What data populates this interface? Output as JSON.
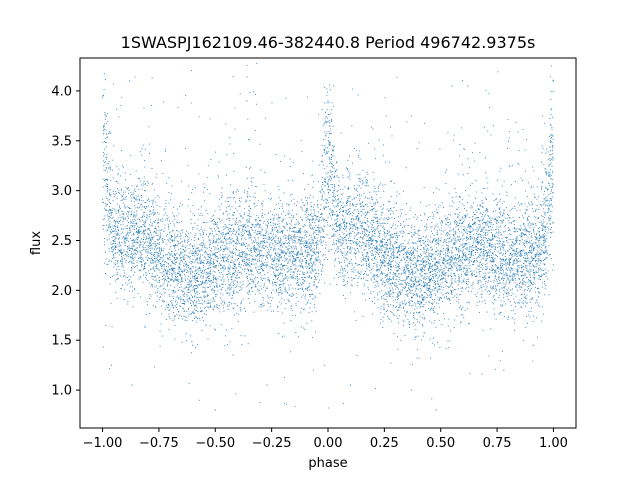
{
  "chart_data": {
    "type": "scatter",
    "title": "1SWASPJ162109.46-382440.8 Period 496742.9375s",
    "xlabel": "phase",
    "ylabel": "flux",
    "xlim": [
      -1.1,
      1.1
    ],
    "ylim": [
      0.62,
      4.33
    ],
    "xticks": [
      -1.0,
      -0.75,
      -0.5,
      -0.25,
      0.0,
      0.25,
      0.5,
      0.75,
      1.0
    ],
    "xtick_labels": [
      "−1.00",
      "−0.75",
      "−0.50",
      "−0.25",
      "0.00",
      "0.25",
      "0.50",
      "0.75",
      "1.00"
    ],
    "yticks": [
      1.0,
      1.5,
      2.0,
      2.5,
      3.0,
      3.5,
      4.0
    ],
    "ytick_labels": [
      "1.0",
      "1.5",
      "2.0",
      "2.5",
      "3.0",
      "3.5",
      "4.0"
    ],
    "grid": false,
    "marker_color": "#1f77b4",
    "phase_range": [
      -1.0,
      1.0
    ],
    "baseline_flux": 2.35,
    "flux_spread": 0.28,
    "flare_phases": [
      -1.0,
      0.0,
      1.0
    ],
    "flare_peak_flux": 4.0,
    "outlier_flux_range": [
      0.8,
      4.15
    ],
    "points": [
      [
        -0.998,
        3.95
      ],
      [
        -0.995,
        3.6
      ],
      [
        -0.99,
        3.1
      ],
      [
        -0.985,
        2.8
      ],
      [
        -0.98,
        2.6
      ],
      [
        -0.95,
        2.5
      ],
      [
        -0.9,
        2.45
      ],
      [
        -0.85,
        2.4
      ],
      [
        -0.8,
        2.3
      ],
      [
        -0.75,
        2.35
      ],
      [
        -0.7,
        2.25
      ],
      [
        -0.65,
        2.3
      ],
      [
        -0.6,
        2.35
      ],
      [
        -0.55,
        2.3
      ],
      [
        -0.5,
        2.25
      ],
      [
        -0.45,
        2.3
      ],
      [
        -0.4,
        2.35
      ],
      [
        -0.35,
        2.3
      ],
      [
        -0.3,
        2.4
      ],
      [
        -0.25,
        2.5
      ],
      [
        -0.2,
        2.6
      ],
      [
        -0.15,
        2.5
      ],
      [
        -0.1,
        2.45
      ],
      [
        -0.05,
        2.6
      ],
      [
        0.0,
        3.9
      ],
      [
        0.002,
        3.5
      ],
      [
        0.01,
        3.0
      ],
      [
        0.02,
        2.8
      ],
      [
        0.05,
        2.6
      ],
      [
        0.1,
        2.5
      ],
      [
        0.15,
        2.45
      ],
      [
        0.2,
        2.35
      ],
      [
        0.25,
        2.3
      ],
      [
        0.3,
        2.25
      ],
      [
        0.35,
        2.3
      ],
      [
        0.4,
        2.35
      ],
      [
        0.45,
        2.3
      ],
      [
        0.5,
        2.25
      ],
      [
        0.55,
        2.3
      ],
      [
        0.6,
        2.35
      ],
      [
        0.65,
        2.3
      ],
      [
        0.7,
        2.4
      ],
      [
        0.75,
        2.5
      ],
      [
        0.8,
        2.6
      ],
      [
        0.85,
        2.5
      ],
      [
        0.9,
        2.45
      ],
      [
        0.95,
        2.6
      ],
      [
        0.99,
        2.9
      ],
      [
        0.995,
        3.4
      ],
      [
        1.0,
        4.1
      ],
      [
        -0.88,
        4.1
      ],
      [
        -0.78,
        4.13
      ],
      [
        -0.36,
        3.9
      ],
      [
        0.55,
        4.05
      ],
      [
        0.62,
        4.05
      ],
      [
        -0.87,
        1.05
      ],
      [
        -0.5,
        0.8
      ],
      [
        -0.27,
        1.05
      ],
      [
        0.1,
        1.05
      ],
      [
        0.37,
        1.0
      ],
      [
        0.48,
        0.8
      ],
      [
        -0.96,
        1.25
      ],
      [
        -0.6,
        1.45
      ],
      [
        0.78,
        1.2
      ],
      [
        0.91,
        1.45
      ]
    ]
  }
}
